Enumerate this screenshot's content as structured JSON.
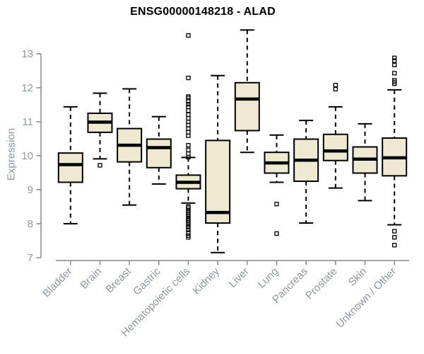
{
  "chart_data": {
    "type": "boxplot",
    "title": "ENSG00000148218 - ALAD",
    "ylabel": "Expression",
    "xlabel": "",
    "ylim": [
      7,
      13.7
    ],
    "yticks": [
      7,
      8,
      9,
      10,
      11,
      12,
      13
    ],
    "grid": false,
    "legend": "none",
    "colors": {
      "box_fill": "#EFE9D1",
      "box_border": "#000000",
      "median": "#000000",
      "whisker": "#000000",
      "axis_color": "#85898d",
      "label_color": "#9097a0",
      "title_color": "#000000",
      "background": "#ffffff"
    },
    "categories": [
      "Bladder",
      "Brain",
      "Breast",
      "Gastric",
      "Hematopoietic cells",
      "Kidney",
      "Liver",
      "Lung",
      "Pancreas",
      "Prostate",
      "Skin",
      "Unknown / Other"
    ],
    "series": [
      {
        "name": "Bladder",
        "low": 8.0,
        "q1": 9.22,
        "median": 9.74,
        "q3": 10.08,
        "high": 11.44,
        "outliers": []
      },
      {
        "name": "Brain",
        "low": 9.91,
        "q1": 10.69,
        "median": 10.99,
        "q3": 11.25,
        "high": 11.84,
        "outliers": [
          9.72
        ]
      },
      {
        "name": "Breast",
        "low": 8.55,
        "q1": 9.82,
        "median": 10.31,
        "q3": 10.8,
        "high": 11.97,
        "outliers": []
      },
      {
        "name": "Gastric",
        "low": 9.17,
        "q1": 9.65,
        "median": 10.24,
        "q3": 10.49,
        "high": 11.15,
        "outliers": []
      },
      {
        "name": "Hematopoietic cells",
        "low": 8.61,
        "q1": 9.03,
        "median": 9.22,
        "q3": 9.43,
        "high": 9.95,
        "outliers": [
          13.54,
          12.29,
          11.74,
          11.7,
          11.6,
          11.52,
          11.44,
          11.33,
          11.21,
          11.1,
          11.0,
          10.9,
          10.8,
          10.69,
          10.59,
          10.31,
          10.17,
          10.06,
          9.96,
          8.51,
          8.47,
          8.4,
          8.34,
          8.28,
          8.22,
          8.15,
          8.09,
          8.03,
          7.97,
          7.9,
          7.82,
          7.74,
          7.65,
          7.6
        ]
      },
      {
        "name": "Kidney",
        "low": 7.15,
        "q1": 8.02,
        "median": 8.33,
        "q3": 10.45,
        "high": 12.36,
        "outliers": []
      },
      {
        "name": "Liver",
        "low": 10.1,
        "q1": 10.74,
        "median": 11.67,
        "q3": 12.15,
        "high": 13.7,
        "outliers": []
      },
      {
        "name": "Lung",
        "low": 9.22,
        "q1": 9.49,
        "median": 9.79,
        "q3": 10.1,
        "high": 10.61,
        "outliers": [
          8.58,
          7.71
        ]
      },
      {
        "name": "Pancreas",
        "low": 8.02,
        "q1": 9.25,
        "median": 9.87,
        "q3": 10.49,
        "high": 11.04,
        "outliers": []
      },
      {
        "name": "Prostate",
        "low": 9.05,
        "q1": 9.86,
        "median": 10.14,
        "q3": 10.63,
        "high": 11.44,
        "outliers": [
          12.08,
          11.96
        ]
      },
      {
        "name": "Skin",
        "low": 8.68,
        "q1": 9.49,
        "median": 9.9,
        "q3": 10.26,
        "high": 10.94,
        "outliers": []
      },
      {
        "name": "Unknown / Other",
        "low": 7.97,
        "q1": 9.41,
        "median": 9.94,
        "q3": 10.52,
        "high": 11.94,
        "outliers": [
          12.88,
          12.8,
          12.67,
          12.43,
          12.22,
          12.17,
          12.12,
          7.78,
          7.6,
          7.37
        ]
      }
    ]
  }
}
